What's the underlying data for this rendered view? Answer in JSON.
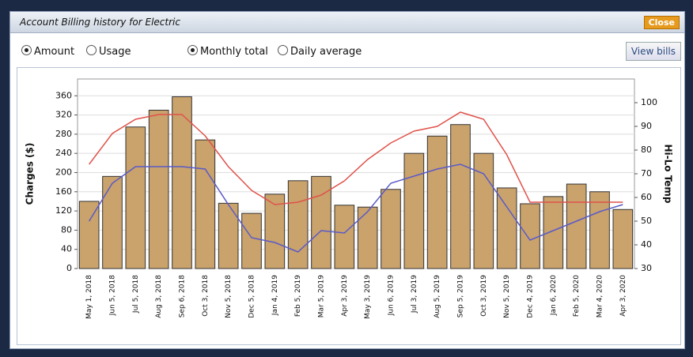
{
  "window": {
    "title": "Account  Billing history for Electric",
    "close": "Close"
  },
  "controls": {
    "options": [
      {
        "label": "Amount",
        "checked": true
      },
      {
        "label": "Usage",
        "checked": false
      },
      {
        "label": "Monthly total",
        "checked": true
      },
      {
        "label": "Daily average",
        "checked": false
      }
    ],
    "button": "View bills"
  },
  "chart_data": {
    "type": "bar",
    "ylabel": "Charges ($)",
    "y2label": "Hi-Lo Temp",
    "categories": [
      "May 1, 2018",
      "Jun 5, 2018",
      "Jul 5, 2018",
      "Aug 3, 2018",
      "Sep 6, 2018",
      "Oct 3, 2018",
      "Nov 5, 2018",
      "Dec 5, 2018",
      "Jan 4, 2019",
      "Feb 5, 2019",
      "Mar 5, 2019",
      "Apr 3, 2019",
      "May 3, 2019",
      "Jun 6, 2019",
      "Jul 3, 2019",
      "Aug 5, 2019",
      "Sep 5, 2019",
      "Oct 3, 2019",
      "Nov 5, 2019",
      "Dec 4, 2019",
      "Jan 6, 2020",
      "Feb 5, 2020",
      "Mar 4, 2020",
      "Apr 3, 2020"
    ],
    "series": [
      {
        "type": "bar",
        "color": "#c9a26c",
        "values": [
          140,
          192,
          295,
          330,
          358,
          268,
          136,
          115,
          155,
          183,
          192,
          132,
          128,
          165,
          240,
          276,
          300,
          240,
          168,
          135,
          150,
          176,
          160,
          123
        ]
      },
      {
        "type": "line",
        "axis": "y2",
        "color": "#e0524a",
        "values": [
          74,
          87,
          93,
          95,
          95,
          86,
          73,
          63,
          57,
          58,
          61,
          67,
          76,
          83,
          88,
          90,
          96,
          93,
          78,
          58,
          58,
          58,
          58,
          58
        ]
      },
      {
        "type": "line",
        "axis": "y2",
        "color": "#5a5ac8",
        "values": [
          50,
          66,
          73,
          73,
          73,
          72,
          57,
          43,
          41,
          37,
          46,
          45,
          54,
          66,
          69,
          72,
          74,
          70,
          56,
          42,
          46,
          50,
          54,
          57
        ]
      }
    ],
    "ylim": [
      0,
      395
    ],
    "yticks": [
      0,
      40,
      80,
      120,
      160,
      200,
      240,
      280,
      320,
      360
    ],
    "y2lim": [
      30,
      110
    ],
    "y2ticks": [
      30,
      40,
      50,
      60,
      70,
      80,
      90,
      100
    ],
    "grid": true
  }
}
